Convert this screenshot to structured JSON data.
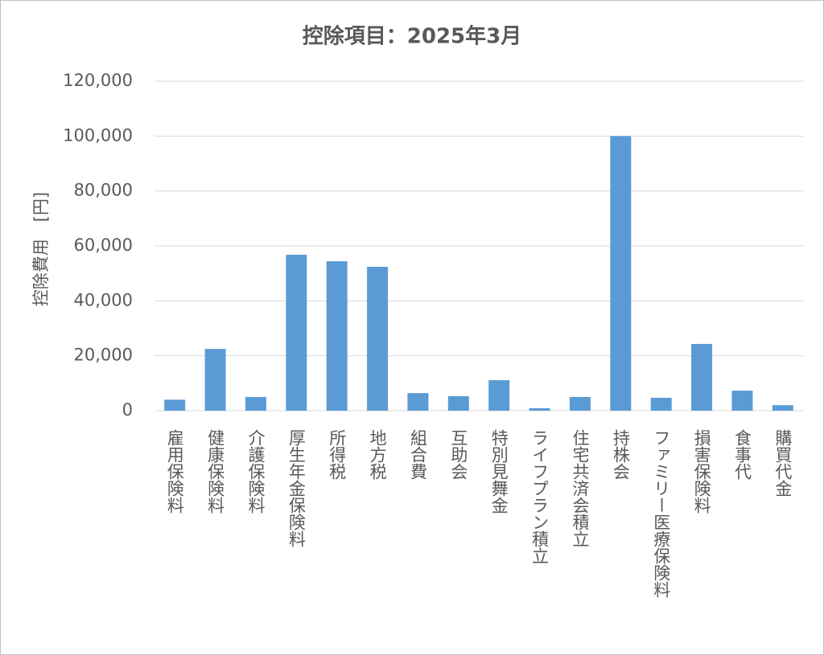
{
  "chart_data": {
    "type": "bar",
    "title": "控除項目：2025年3月",
    "y_label": "控除費用　[円]",
    "categories": [
      "雇用保険料",
      "健康保険料",
      "介護保険料",
      "厚生年金保険料",
      "所得税",
      "地方税",
      "組合費",
      "互助会",
      "特別見舞金",
      "ライフプラン積立",
      "住宅共済会積立",
      "持株会",
      "ファミリー医療保険料",
      "損害保険料",
      "食事代",
      "購買代金"
    ],
    "values": [
      4000,
      22500,
      5000,
      56800,
      54400,
      52400,
      6400,
      5300,
      11100,
      900,
      5000,
      100000,
      4700,
      24300,
      7300,
      2000
    ],
    "color": "#5b9bd5",
    "ylim": [
      0,
      120000
    ],
    "yticks": [
      0,
      {
        "value": 20000,
        "label": "20,000"
      },
      {
        "value": 40000,
        "label": "40,000"
      },
      {
        "value": 60000,
        "label": "60,000"
      },
      {
        "value": 80000,
        "label": "80,000"
      },
      {
        "value": 100000,
        "label": "100,000"
      },
      {
        "value": 120000,
        "label": "120,000"
      }
    ],
    "grid": true
  }
}
